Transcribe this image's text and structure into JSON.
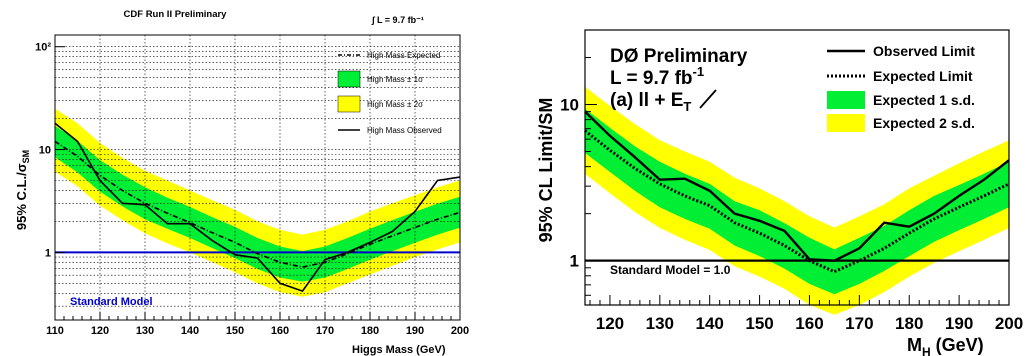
{
  "colors": {
    "band1": "#00ee33",
    "band2": "#ffff00",
    "sm_cdf": "#0000cc",
    "line": "#000000"
  },
  "chart_data": [
    {
      "type": "line",
      "title": "CDF Run II Preliminary",
      "luminosity_label": "∫ L = 9.7 fb⁻¹",
      "xlabel": "Higgs Mass (GeV)",
      "ylabel": "95% C.L./σSM",
      "ylabel_main": "95% C.L./σ",
      "ylabel_sub": "SM",
      "scale": "log-y",
      "xlim": [
        110,
        200
      ],
      "ylim": [
        0.22,
        130
      ],
      "grid": true,
      "legend_placement": "top-right",
      "x_ticks": [
        "110",
        "120",
        "130",
        "140",
        "150",
        "160",
        "170",
        "180",
        "190",
        "200"
      ],
      "y_ticks": [
        "1",
        "10",
        "10²"
      ],
      "y_tick_values": [
        1,
        10,
        100
      ],
      "x": [
        110,
        115,
        120,
        125,
        130,
        135,
        140,
        145,
        150,
        155,
        160,
        165,
        170,
        175,
        180,
        185,
        190,
        195,
        200
      ],
      "legend": [
        "High Mass Expected",
        "High Mass ± 1σ",
        "High Mass ± 2σ",
        "High Mass Observed"
      ],
      "series": [
        {
          "name": "High Mass Expected",
          "values": [
            12,
            8.6,
            5.6,
            4.0,
            3.0,
            2.4,
            1.95,
            1.55,
            1.25,
            0.97,
            0.8,
            0.72,
            0.8,
            0.97,
            1.2,
            1.45,
            1.75,
            2.1,
            2.45
          ]
        },
        {
          "name": "High Mass ± 1σ",
          "lower": [
            8.4,
            6.0,
            3.9,
            2.8,
            2.1,
            1.7,
            1.38,
            1.1,
            0.88,
            0.69,
            0.57,
            0.52,
            0.57,
            0.69,
            0.85,
            1.03,
            1.24,
            1.49,
            1.74
          ],
          "upper": [
            17,
            12.2,
            7.9,
            5.7,
            4.3,
            3.4,
            2.76,
            2.2,
            1.77,
            1.38,
            1.14,
            1.03,
            1.14,
            1.38,
            1.7,
            2.06,
            2.48,
            2.98,
            3.48
          ]
        },
        {
          "name": "High Mass ± 2σ",
          "lower": [
            6.1,
            4.4,
            2.85,
            2.05,
            1.53,
            1.22,
            1.0,
            0.8,
            0.64,
            0.5,
            0.41,
            0.37,
            0.41,
            0.5,
            0.61,
            0.74,
            0.9,
            1.07,
            1.25
          ],
          "upper": [
            25,
            18,
            11.6,
            8.3,
            6.2,
            5.0,
            4.0,
            3.2,
            2.6,
            2.0,
            1.66,
            1.49,
            1.66,
            2.0,
            2.5,
            3.0,
            3.6,
            4.3,
            5.0
          ]
        },
        {
          "name": "High Mass Observed",
          "values": [
            18,
            12,
            5.0,
            3.0,
            2.9,
            1.9,
            1.9,
            1.3,
            0.95,
            0.88,
            0.5,
            0.42,
            0.85,
            1.0,
            1.25,
            1.6,
            2.5,
            5.0,
            5.4
          ]
        }
      ],
      "reference_line": {
        "value": 1,
        "label": "Standard Model"
      }
    },
    {
      "type": "line",
      "title_lines": [
        "DØ Preliminary",
        "L = 9.7 fb",
        "(a) ll + E"
      ],
      "lumi_exponent": "-1",
      "met_subscript": "T",
      "xlabel": "M",
      "xlabel_sub": "H",
      "xlabel_unit": " (GeV)",
      "ylabel": "95% CL Limit/SM",
      "scale": "log-y",
      "xlim": [
        115,
        200
      ],
      "ylim": [
        0.52,
        30
      ],
      "grid": false,
      "legend_placement": "top-right",
      "x_ticks": [
        "120",
        "130",
        "140",
        "150",
        "160",
        "170",
        "180",
        "190",
        "200"
      ],
      "y_ticks": [
        "1",
        "10"
      ],
      "y_tick_values": [
        1,
        10
      ],
      "x": [
        115,
        120,
        125,
        130,
        135,
        140,
        145,
        150,
        155,
        160,
        165,
        170,
        175,
        180,
        185,
        190,
        195,
        200
      ],
      "legend": [
        "Observed Limit",
        "Expected Limit",
        "Expected 1 s.d.",
        "Expected 2 s.d."
      ],
      "series": [
        {
          "name": "Observed Limit",
          "values": [
            9.0,
            6.3,
            4.6,
            3.3,
            3.35,
            2.8,
            2.0,
            1.8,
            1.55,
            1.02,
            1.0,
            1.2,
            1.75,
            1.65,
            2.0,
            2.6,
            3.3,
            4.4
          ]
        },
        {
          "name": "Expected Limit",
          "values": [
            6.8,
            5.1,
            3.9,
            3.1,
            2.6,
            2.25,
            1.75,
            1.5,
            1.25,
            1.0,
            0.85,
            1.0,
            1.2,
            1.5,
            1.85,
            2.2,
            2.6,
            3.1
          ]
        },
        {
          "name": "Expected 1 s.d.",
          "lower": [
            4.9,
            3.7,
            2.8,
            2.2,
            1.85,
            1.6,
            1.25,
            1.07,
            0.89,
            0.71,
            0.61,
            0.71,
            0.86,
            1.07,
            1.32,
            1.57,
            1.85,
            2.2
          ],
          "upper": [
            9.4,
            7.1,
            5.4,
            4.3,
            3.6,
            3.1,
            2.4,
            2.1,
            1.74,
            1.4,
            1.18,
            1.4,
            1.67,
            2.1,
            2.6,
            3.05,
            3.6,
            4.3
          ]
        },
        {
          "name": "Expected 2 s.d.",
          "lower": [
            3.6,
            2.7,
            2.05,
            1.62,
            1.36,
            1.17,
            0.92,
            0.79,
            0.66,
            0.52,
            0.45,
            0.52,
            0.63,
            0.79,
            0.97,
            1.15,
            1.36,
            1.62
          ],
          "upper": [
            13,
            9.8,
            7.5,
            5.9,
            5.0,
            4.3,
            3.4,
            2.9,
            2.4,
            1.92,
            1.63,
            1.92,
            2.3,
            2.9,
            3.5,
            4.2,
            5.0,
            5.9
          ]
        }
      ],
      "reference_line": {
        "value": 1,
        "label": "Standard Model = 1.0"
      }
    }
  ]
}
